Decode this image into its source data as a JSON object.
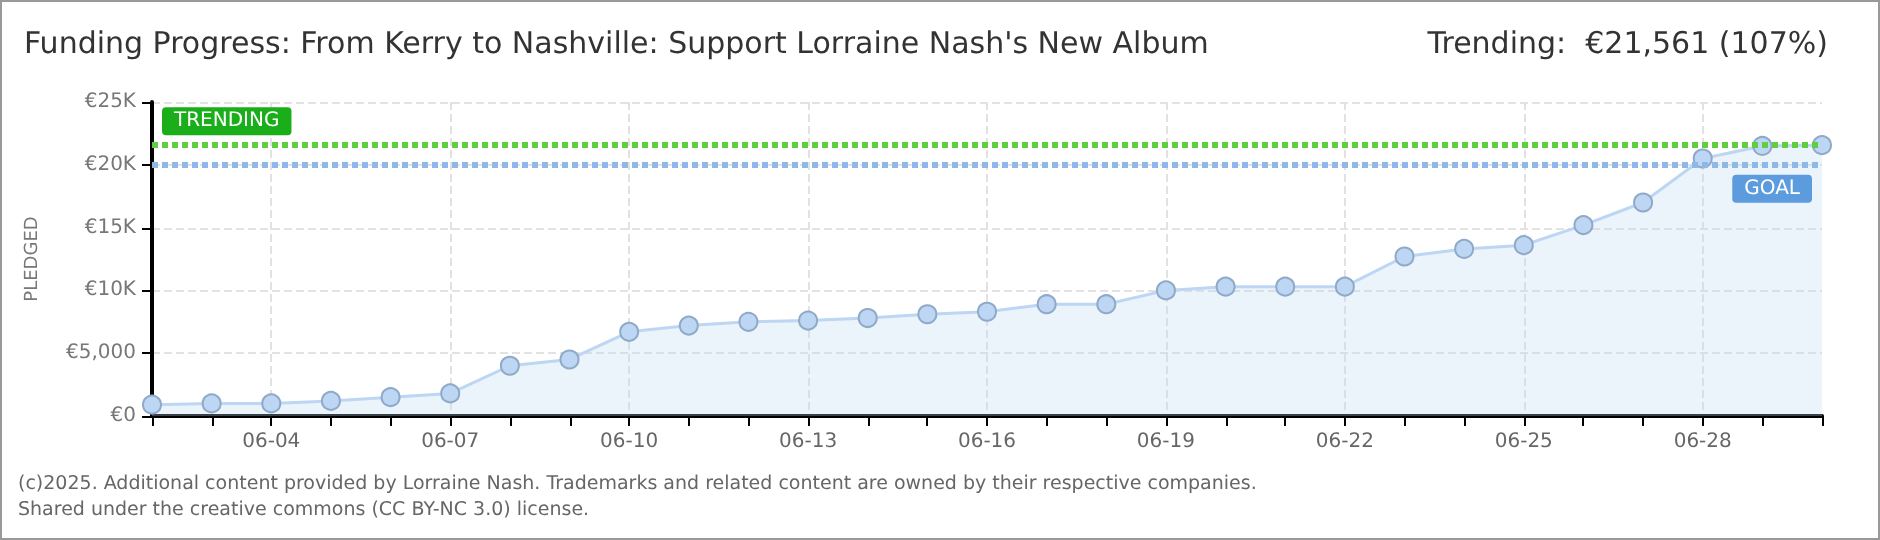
{
  "chart_data": {
    "type": "area",
    "title": "Funding Progress: From Kerry to Nashville: Support Lorraine Nash's New Album",
    "subtitle": "Trending:  €21,561 (107%)",
    "ylabel": "PLEDGED",
    "categories": [
      null,
      null,
      "06-04",
      null,
      null,
      "06-07",
      null,
      null,
      "06-10",
      null,
      null,
      "06-13",
      null,
      null,
      "06-16",
      null,
      null,
      "06-19",
      null,
      null,
      "06-22",
      null,
      null,
      "06-25",
      null,
      null,
      "06-28",
      null,
      null
    ],
    "series": [
      {
        "color": "#bcd6f3",
        "values": [
          900,
          1000,
          1000,
          1200,
          1500,
          1800,
          4000,
          4500,
          6700,
          7200,
          7500,
          7600,
          7800,
          8100,
          8300,
          8900,
          8900,
          10000,
          10300,
          10300,
          10300,
          12700,
          13300,
          13600,
          15200,
          17000,
          20500,
          21500,
          21561
        ]
      }
    ],
    "ylim": [
      0,
      25000
    ],
    "yticks": [
      {
        "value": 0,
        "label": "€0"
      },
      {
        "value": 5000,
        "label": "€5,000"
      },
      {
        "value": 10000,
        "label": "€10K"
      },
      {
        "value": 15000,
        "label": "€15K"
      },
      {
        "value": 20000,
        "label": "€20K"
      },
      {
        "value": 25000,
        "label": "€25K"
      }
    ],
    "ref_lines": [
      {
        "axis": "y",
        "value": 21561,
        "label": "TRENDING",
        "color": "#5fcf3f"
      },
      {
        "axis": "y",
        "value": 20000,
        "label": "GOAL",
        "color": "#8db8e8"
      }
    ],
    "grid": true,
    "marker": "circle",
    "line_style": "solid",
    "annotations": [
      "(c)2025. Additional content provided by Lorraine Nash. Trademarks and related content are owned by their respective companies.",
      "Shared under the creative commons (CC BY-NC 3.0) license."
    ]
  }
}
